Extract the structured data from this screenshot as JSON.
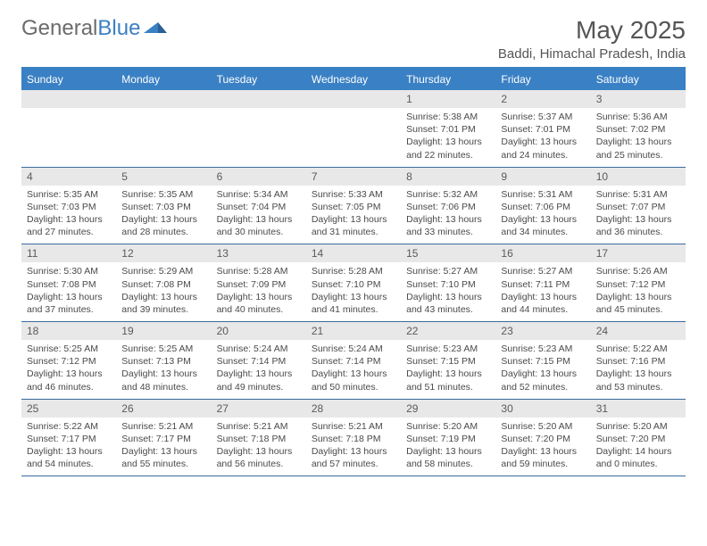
{
  "brand": {
    "part1": "General",
    "part2": "Blue"
  },
  "title": "May 2025",
  "location": "Baddi, Himachal Pradesh, India",
  "colors": {
    "header_bar": "#3a80c4",
    "day_number_bg": "#e8e8e8",
    "text": "#4a4a4a",
    "row_border": "#3a6b9c"
  },
  "weekdays": [
    "Sunday",
    "Monday",
    "Tuesday",
    "Wednesday",
    "Thursday",
    "Friday",
    "Saturday"
  ],
  "weeks": [
    [
      {
        "empty": true
      },
      {
        "empty": true
      },
      {
        "empty": true
      },
      {
        "empty": true
      },
      {
        "n": "1",
        "sunrise": "Sunrise: 5:38 AM",
        "sunset": "Sunset: 7:01 PM",
        "daylight": "Daylight: 13 hours and 22 minutes."
      },
      {
        "n": "2",
        "sunrise": "Sunrise: 5:37 AM",
        "sunset": "Sunset: 7:01 PM",
        "daylight": "Daylight: 13 hours and 24 minutes."
      },
      {
        "n": "3",
        "sunrise": "Sunrise: 5:36 AM",
        "sunset": "Sunset: 7:02 PM",
        "daylight": "Daylight: 13 hours and 25 minutes."
      }
    ],
    [
      {
        "n": "4",
        "sunrise": "Sunrise: 5:35 AM",
        "sunset": "Sunset: 7:03 PM",
        "daylight": "Daylight: 13 hours and 27 minutes."
      },
      {
        "n": "5",
        "sunrise": "Sunrise: 5:35 AM",
        "sunset": "Sunset: 7:03 PM",
        "daylight": "Daylight: 13 hours and 28 minutes."
      },
      {
        "n": "6",
        "sunrise": "Sunrise: 5:34 AM",
        "sunset": "Sunset: 7:04 PM",
        "daylight": "Daylight: 13 hours and 30 minutes."
      },
      {
        "n": "7",
        "sunrise": "Sunrise: 5:33 AM",
        "sunset": "Sunset: 7:05 PM",
        "daylight": "Daylight: 13 hours and 31 minutes."
      },
      {
        "n": "8",
        "sunrise": "Sunrise: 5:32 AM",
        "sunset": "Sunset: 7:06 PM",
        "daylight": "Daylight: 13 hours and 33 minutes."
      },
      {
        "n": "9",
        "sunrise": "Sunrise: 5:31 AM",
        "sunset": "Sunset: 7:06 PM",
        "daylight": "Daylight: 13 hours and 34 minutes."
      },
      {
        "n": "10",
        "sunrise": "Sunrise: 5:31 AM",
        "sunset": "Sunset: 7:07 PM",
        "daylight": "Daylight: 13 hours and 36 minutes."
      }
    ],
    [
      {
        "n": "11",
        "sunrise": "Sunrise: 5:30 AM",
        "sunset": "Sunset: 7:08 PM",
        "daylight": "Daylight: 13 hours and 37 minutes."
      },
      {
        "n": "12",
        "sunrise": "Sunrise: 5:29 AM",
        "sunset": "Sunset: 7:08 PM",
        "daylight": "Daylight: 13 hours and 39 minutes."
      },
      {
        "n": "13",
        "sunrise": "Sunrise: 5:28 AM",
        "sunset": "Sunset: 7:09 PM",
        "daylight": "Daylight: 13 hours and 40 minutes."
      },
      {
        "n": "14",
        "sunrise": "Sunrise: 5:28 AM",
        "sunset": "Sunset: 7:10 PM",
        "daylight": "Daylight: 13 hours and 41 minutes."
      },
      {
        "n": "15",
        "sunrise": "Sunrise: 5:27 AM",
        "sunset": "Sunset: 7:10 PM",
        "daylight": "Daylight: 13 hours and 43 minutes."
      },
      {
        "n": "16",
        "sunrise": "Sunrise: 5:27 AM",
        "sunset": "Sunset: 7:11 PM",
        "daylight": "Daylight: 13 hours and 44 minutes."
      },
      {
        "n": "17",
        "sunrise": "Sunrise: 5:26 AM",
        "sunset": "Sunset: 7:12 PM",
        "daylight": "Daylight: 13 hours and 45 minutes."
      }
    ],
    [
      {
        "n": "18",
        "sunrise": "Sunrise: 5:25 AM",
        "sunset": "Sunset: 7:12 PM",
        "daylight": "Daylight: 13 hours and 46 minutes."
      },
      {
        "n": "19",
        "sunrise": "Sunrise: 5:25 AM",
        "sunset": "Sunset: 7:13 PM",
        "daylight": "Daylight: 13 hours and 48 minutes."
      },
      {
        "n": "20",
        "sunrise": "Sunrise: 5:24 AM",
        "sunset": "Sunset: 7:14 PM",
        "daylight": "Daylight: 13 hours and 49 minutes."
      },
      {
        "n": "21",
        "sunrise": "Sunrise: 5:24 AM",
        "sunset": "Sunset: 7:14 PM",
        "daylight": "Daylight: 13 hours and 50 minutes."
      },
      {
        "n": "22",
        "sunrise": "Sunrise: 5:23 AM",
        "sunset": "Sunset: 7:15 PM",
        "daylight": "Daylight: 13 hours and 51 minutes."
      },
      {
        "n": "23",
        "sunrise": "Sunrise: 5:23 AM",
        "sunset": "Sunset: 7:15 PM",
        "daylight": "Daylight: 13 hours and 52 minutes."
      },
      {
        "n": "24",
        "sunrise": "Sunrise: 5:22 AM",
        "sunset": "Sunset: 7:16 PM",
        "daylight": "Daylight: 13 hours and 53 minutes."
      }
    ],
    [
      {
        "n": "25",
        "sunrise": "Sunrise: 5:22 AM",
        "sunset": "Sunset: 7:17 PM",
        "daylight": "Daylight: 13 hours and 54 minutes."
      },
      {
        "n": "26",
        "sunrise": "Sunrise: 5:21 AM",
        "sunset": "Sunset: 7:17 PM",
        "daylight": "Daylight: 13 hours and 55 minutes."
      },
      {
        "n": "27",
        "sunrise": "Sunrise: 5:21 AM",
        "sunset": "Sunset: 7:18 PM",
        "daylight": "Daylight: 13 hours and 56 minutes."
      },
      {
        "n": "28",
        "sunrise": "Sunrise: 5:21 AM",
        "sunset": "Sunset: 7:18 PM",
        "daylight": "Daylight: 13 hours and 57 minutes."
      },
      {
        "n": "29",
        "sunrise": "Sunrise: 5:20 AM",
        "sunset": "Sunset: 7:19 PM",
        "daylight": "Daylight: 13 hours and 58 minutes."
      },
      {
        "n": "30",
        "sunrise": "Sunrise: 5:20 AM",
        "sunset": "Sunset: 7:20 PM",
        "daylight": "Daylight: 13 hours and 59 minutes."
      },
      {
        "n": "31",
        "sunrise": "Sunrise: 5:20 AM",
        "sunset": "Sunset: 7:20 PM",
        "daylight": "Daylight: 14 hours and 0 minutes."
      }
    ]
  ]
}
